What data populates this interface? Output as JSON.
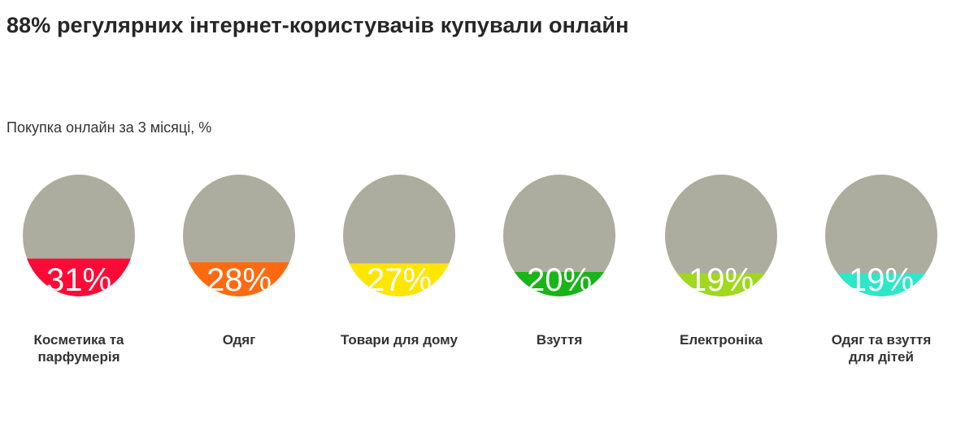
{
  "title": "88% регулярних інтернет-користувачів купували онлайн",
  "subtitle": "Покупка онлайн за 3 місяці, %",
  "chart_data": {
    "type": "bar",
    "title": "88% регулярних інтернет-користувачів купували онлайн",
    "subtitle": "Покупка онлайн за 3 місяці, %",
    "categories": [
      "Косметика та\nпарфумерія",
      "Одяг",
      "Товари для дому",
      "Взуття",
      "Електроніка",
      "Одяг та взуття\nдля дітей"
    ],
    "values": [
      31,
      28,
      27,
      20,
      19,
      19
    ],
    "value_labels": [
      "31%",
      "28%",
      "27%",
      "20%",
      "19%",
      "19%"
    ],
    "colors": [
      "#ff0a37",
      "#ff6a10",
      "#ffe600",
      "#18b418",
      "#a0d81e",
      "#2ce8c8"
    ],
    "background_color": "#acac9f",
    "ylim": [
      0,
      100
    ]
  }
}
